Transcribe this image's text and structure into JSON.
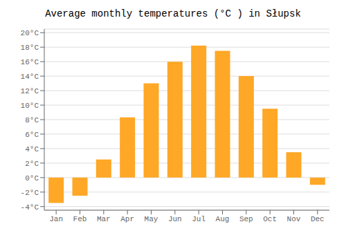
{
  "chart_data": {
    "type": "bar",
    "title": "Average monthly temperatures (°C ) in Słupsk",
    "categories": [
      "Jan",
      "Feb",
      "Mar",
      "Apr",
      "May",
      "Jun",
      "Jul",
      "Aug",
      "Sep",
      "Oct",
      "Nov",
      "Dec"
    ],
    "values": [
      -3.5,
      -2.5,
      2.5,
      8.3,
      13.0,
      16.0,
      18.2,
      17.5,
      14.0,
      9.5,
      3.5,
      -1.0
    ],
    "color": "#FFA726",
    "ylim": [
      -4.5,
      20.5
    ],
    "yticks": [
      {
        "value": -4,
        "label": "-4°C"
      },
      {
        "value": -2,
        "label": "-2°C"
      },
      {
        "value": 0,
        "label": "0°C"
      },
      {
        "value": 2,
        "label": "2°C"
      },
      {
        "value": 4,
        "label": "4°C"
      },
      {
        "value": 6,
        "label": "6°C"
      },
      {
        "value": 8,
        "label": "8°C"
      },
      {
        "value": 10,
        "label": "10°C"
      },
      {
        "value": 12,
        "label": "12°C"
      },
      {
        "value": 14,
        "label": "14°C"
      },
      {
        "value": 16,
        "label": "16°C"
      },
      {
        "value": 18,
        "label": "18°C"
      },
      {
        "value": 20,
        "label": "20°C"
      }
    ],
    "grid": true
  }
}
